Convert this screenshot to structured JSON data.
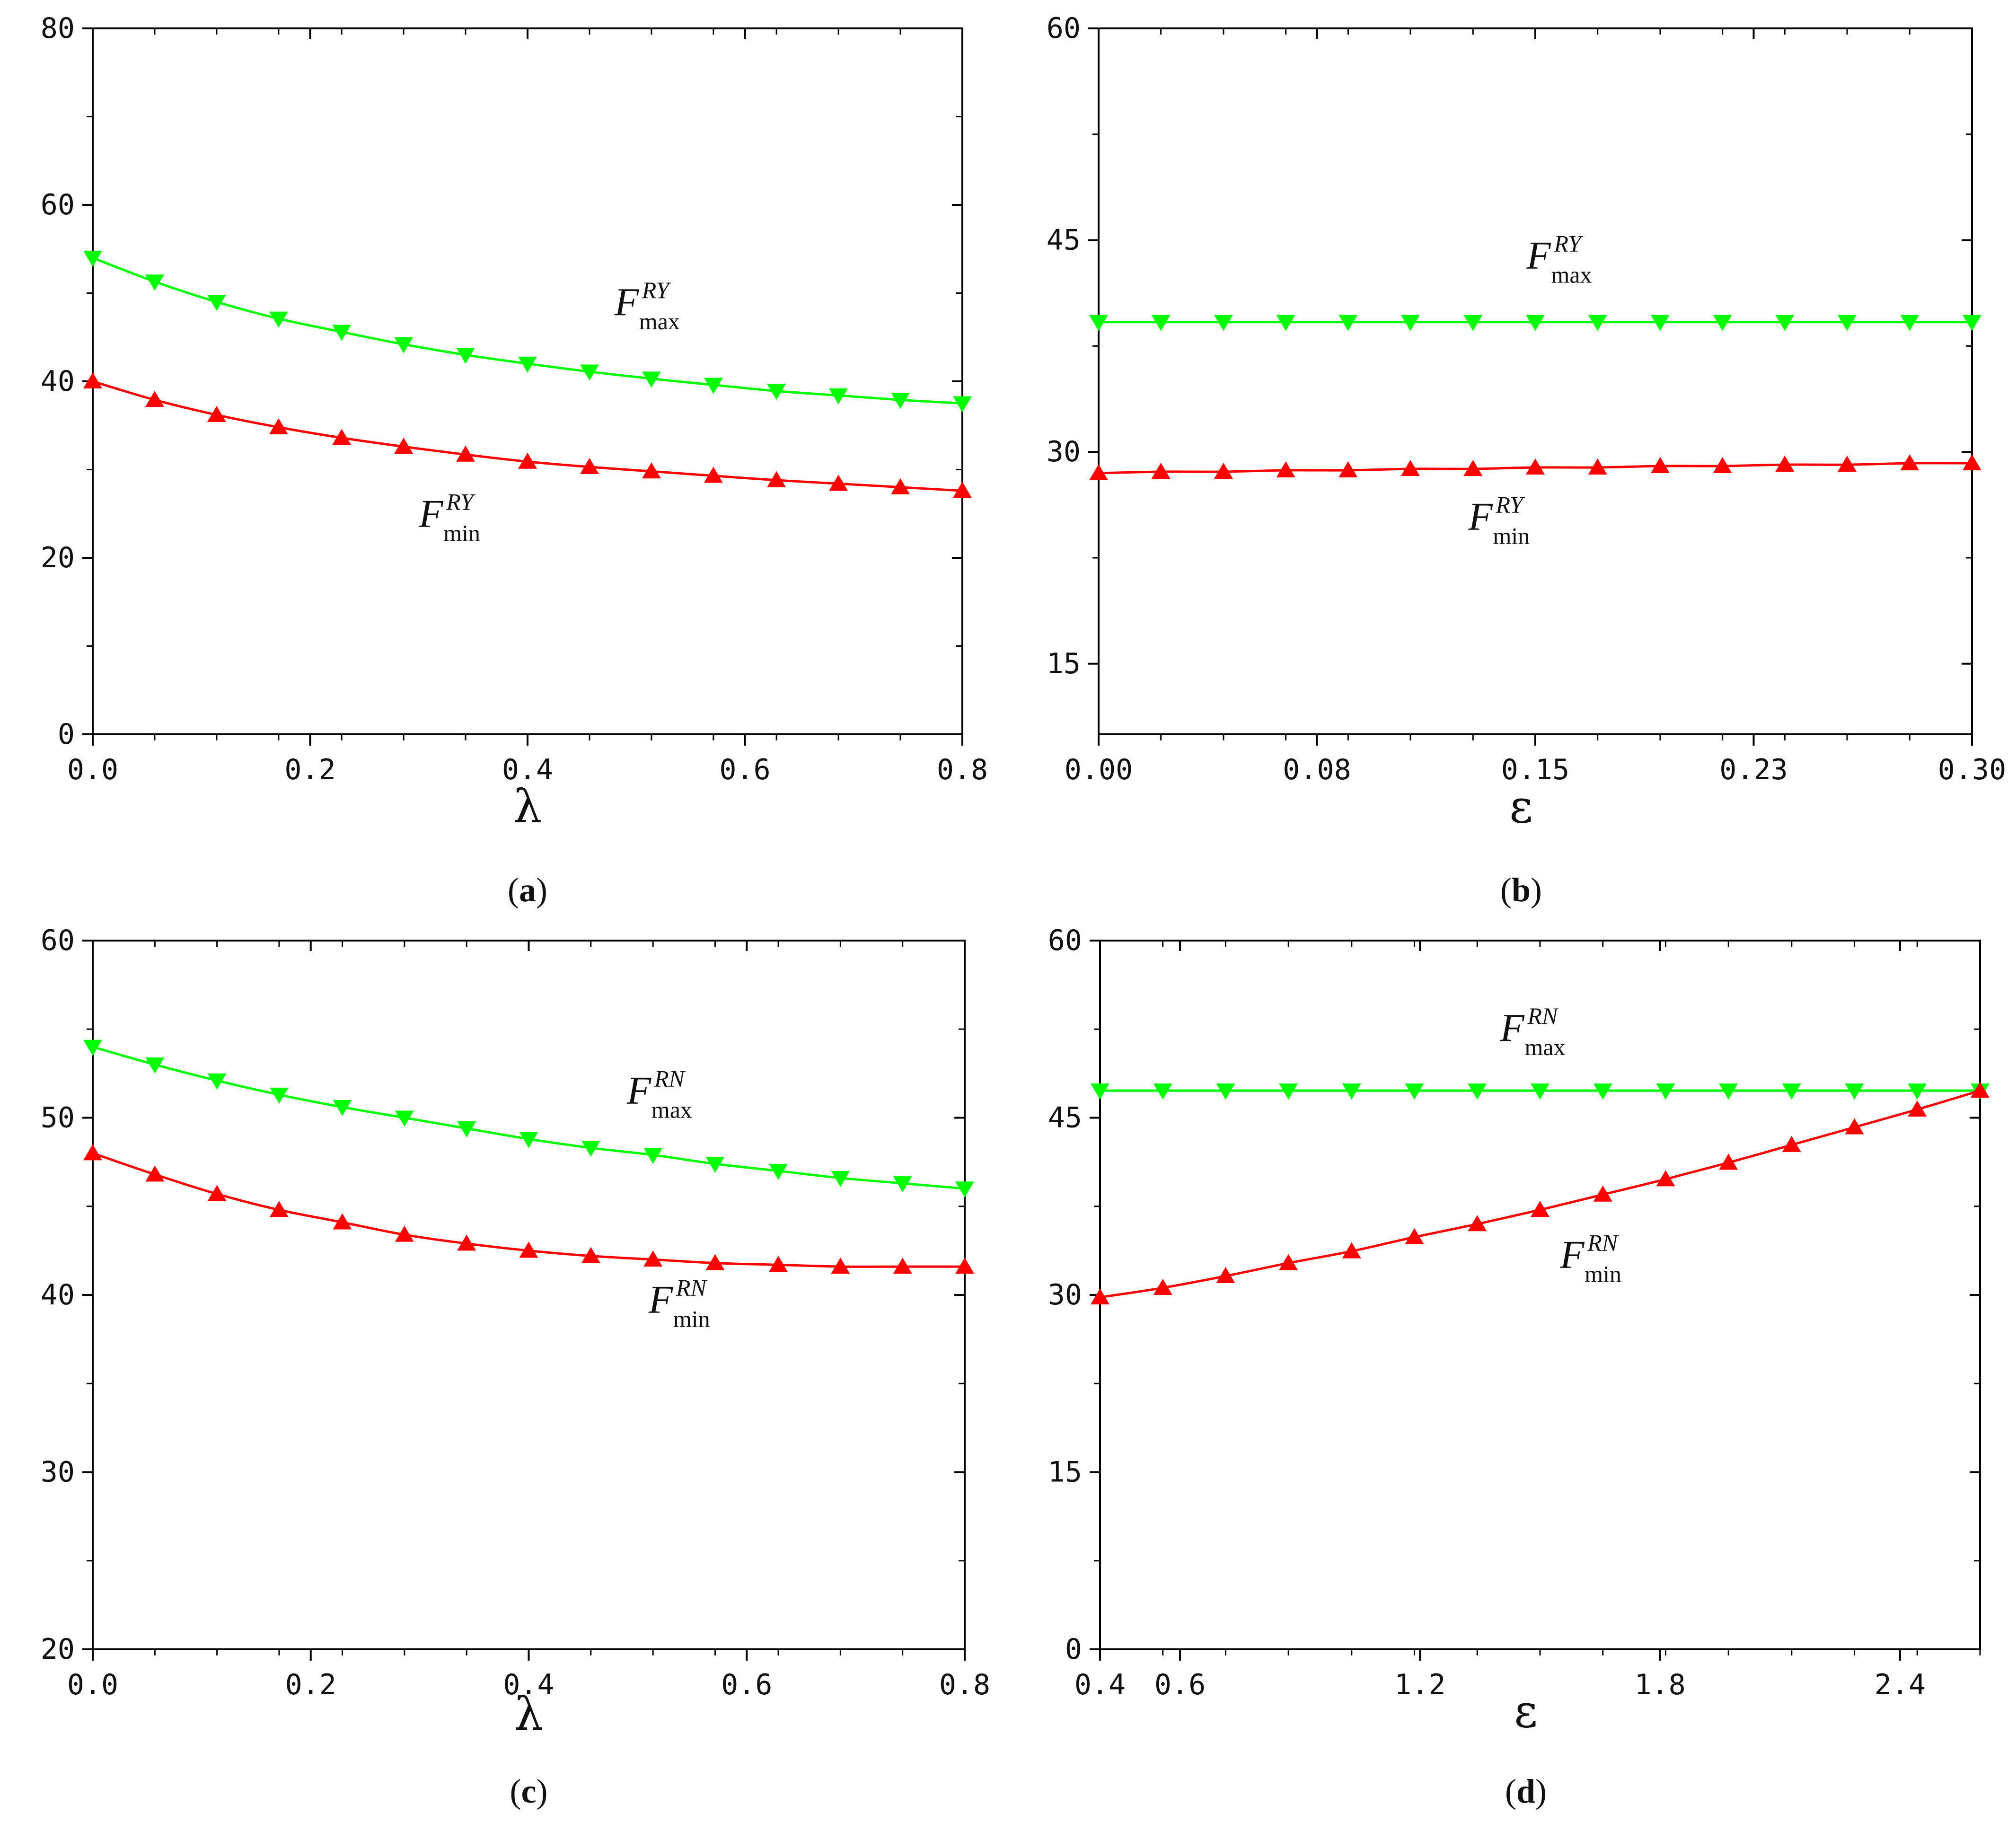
{
  "chart_data": [
    {
      "type": "line",
      "panel_label": "a",
      "xlabel": "λ",
      "ylabel": "",
      "xlim": [
        0,
        0.8
      ],
      "ylim": [
        0,
        80
      ],
      "xticks": [
        0.0,
        0.2,
        0.4,
        0.6,
        0.8
      ],
      "xtick_labels": [
        "0.0",
        "0.2",
        "0.4",
        "0.6",
        "0.8"
      ],
      "yticks": [
        0,
        20,
        40,
        60,
        80
      ],
      "ytick_labels": [
        "0",
        "20",
        "40",
        "60",
        "80"
      ],
      "grid": false,
      "series": [
        {
          "name": "F_max^RY",
          "label_main": "F",
          "label_sup": "RY",
          "label_sub": "max",
          "color": "#00ff00",
          "marker": "triangle-down",
          "x": [
            0.0,
            0.057,
            0.114,
            0.171,
            0.229,
            0.286,
            0.343,
            0.4,
            0.457,
            0.514,
            0.571,
            0.629,
            0.686,
            0.743,
            0.8
          ],
          "y": [
            54.0,
            51.3,
            49.0,
            47.1,
            45.6,
            44.2,
            43.0,
            42.0,
            41.1,
            40.3,
            39.6,
            38.9,
            38.4,
            37.9,
            37.5
          ]
        },
        {
          "name": "F_min^RY",
          "label_main": "F",
          "label_sup": "RY",
          "label_sub": "min",
          "color": "#ff0000",
          "marker": "triangle-up",
          "x": [
            0.0,
            0.057,
            0.114,
            0.171,
            0.229,
            0.286,
            0.343,
            0.4,
            0.457,
            0.514,
            0.571,
            0.629,
            0.686,
            0.743,
            0.8
          ],
          "y": [
            40.0,
            37.9,
            36.2,
            34.8,
            33.6,
            32.6,
            31.7,
            30.9,
            30.3,
            29.8,
            29.3,
            28.8,
            28.4,
            28.0,
            27.6
          ]
        }
      ],
      "annotations": [
        {
          "series": 0,
          "x": 0.48,
          "y": 47.5
        },
        {
          "series": 1,
          "x": 0.3,
          "y": 23.5
        }
      ]
    },
    {
      "type": "line",
      "panel_label": "b",
      "xlabel": "ε",
      "ylabel": "",
      "xlim": [
        0,
        0.3
      ],
      "ylim": [
        10,
        60
      ],
      "xticks": [
        0.0,
        0.075,
        0.15,
        0.225,
        0.3
      ],
      "xtick_labels": [
        "0.00",
        "0.08",
        "0.15",
        "0.23",
        "0.30"
      ],
      "yticks": [
        15,
        30,
        45,
        60
      ],
      "ytick_labels": [
        "15",
        "30",
        "45",
        "60"
      ],
      "grid": false,
      "series": [
        {
          "name": "F_max^RY",
          "label_main": "F",
          "label_sup": "RY",
          "label_sub": "max",
          "color": "#00ff00",
          "marker": "triangle-down",
          "x": [
            0.0,
            0.0214,
            0.0429,
            0.0643,
            0.0857,
            0.1071,
            0.1286,
            0.15,
            0.1714,
            0.1929,
            0.2143,
            0.2357,
            0.2571,
            0.2786,
            0.3
          ],
          "y": [
            39.2,
            39.2,
            39.2,
            39.2,
            39.2,
            39.2,
            39.2,
            39.2,
            39.2,
            39.2,
            39.2,
            39.2,
            39.2,
            39.2,
            39.2
          ]
        },
        {
          "name": "F_min^RY",
          "label_main": "F",
          "label_sup": "RY",
          "label_sub": "min",
          "color": "#ff0000",
          "marker": "triangle-up",
          "x": [
            0.0,
            0.0214,
            0.0429,
            0.0643,
            0.0857,
            0.1071,
            0.1286,
            0.15,
            0.1714,
            0.1929,
            0.2143,
            0.2357,
            0.2571,
            0.2786,
            0.3
          ],
          "y": [
            28.5,
            28.6,
            28.6,
            28.7,
            28.7,
            28.8,
            28.8,
            28.9,
            28.9,
            29.0,
            29.0,
            29.1,
            29.1,
            29.2,
            29.2
          ]
        }
      ],
      "annotations": [
        {
          "series": 0,
          "x": 0.147,
          "y": 43.0
        },
        {
          "series": 1,
          "x": 0.127,
          "y": 24.5
        }
      ]
    },
    {
      "type": "line",
      "panel_label": "c",
      "xlabel": "λ",
      "ylabel": "",
      "xlim": [
        0,
        0.8
      ],
      "ylim": [
        20,
        60
      ],
      "xticks": [
        0.0,
        0.2,
        0.4,
        0.6,
        0.8
      ],
      "xtick_labels": [
        "0.0",
        "0.2",
        "0.4",
        "0.6",
        "0.8"
      ],
      "yticks": [
        20,
        30,
        40,
        50,
        60
      ],
      "ytick_labels": [
        "20",
        "30",
        "40",
        "50",
        "60"
      ],
      "grid": false,
      "series": [
        {
          "name": "F_max^RN",
          "label_main": "F",
          "label_sup": "RN",
          "label_sub": "max",
          "color": "#00ff00",
          "marker": "triangle-down",
          "x": [
            0.0,
            0.057,
            0.114,
            0.171,
            0.229,
            0.286,
            0.343,
            0.4,
            0.457,
            0.514,
            0.571,
            0.629,
            0.686,
            0.743,
            0.8
          ],
          "y": [
            54.0,
            53.0,
            52.1,
            51.3,
            50.6,
            50.0,
            49.4,
            48.8,
            48.3,
            47.9,
            47.4,
            47.0,
            46.6,
            46.3,
            46.0
          ]
        },
        {
          "name": "F_min^RN",
          "label_main": "F",
          "label_sup": "RN",
          "label_sub": "min",
          "color": "#ff0000",
          "marker": "triangle-up",
          "x": [
            0.0,
            0.057,
            0.114,
            0.171,
            0.229,
            0.286,
            0.343,
            0.4,
            0.457,
            0.514,
            0.571,
            0.629,
            0.686,
            0.743,
            0.8
          ],
          "y": [
            48.0,
            46.8,
            45.7,
            44.8,
            44.1,
            43.4,
            42.9,
            42.5,
            42.2,
            42.0,
            41.8,
            41.7,
            41.6,
            41.6,
            41.6
          ]
        }
      ],
      "annotations": [
        {
          "series": 0,
          "x": 0.49,
          "y": 50.8
        },
        {
          "series": 1,
          "x": 0.51,
          "y": 39.0
        }
      ]
    },
    {
      "type": "line",
      "panel_label": "d",
      "xlabel": "ε",
      "ylabel": "",
      "xlim": [
        0.4,
        2.6
      ],
      "ylim": [
        0,
        60
      ],
      "xticks": [
        0.4,
        0.6,
        1.2,
        1.8,
        2.4
      ],
      "xtick_labels": [
        "0.4",
        "0.6",
        "1.2",
        "1.8",
        "2.4"
      ],
      "yticks": [
        0,
        15,
        30,
        45,
        60
      ],
      "ytick_labels": [
        "0",
        "15",
        "30",
        "45",
        "60"
      ],
      "grid": false,
      "series": [
        {
          "name": "F_max^RN",
          "label_main": "F",
          "label_sup": "RN",
          "label_sub": "max",
          "color": "#00ff00",
          "marker": "triangle-down",
          "x": [
            0.4,
            0.557,
            0.714,
            0.871,
            1.029,
            1.186,
            1.343,
            1.5,
            1.657,
            1.814,
            1.971,
            2.129,
            2.286,
            2.443,
            2.6
          ],
          "y": [
            47.3,
            47.3,
            47.3,
            47.3,
            47.3,
            47.3,
            47.3,
            47.3,
            47.3,
            47.3,
            47.3,
            47.3,
            47.3,
            47.3,
            47.3
          ]
        },
        {
          "name": "F_min^RN",
          "label_main": "F",
          "label_sup": "RN",
          "label_sub": "min",
          "color": "#ff0000",
          "marker": "triangle-up",
          "x": [
            0.4,
            0.557,
            0.714,
            0.871,
            1.029,
            1.186,
            1.343,
            1.5,
            1.657,
            1.814,
            1.971,
            2.129,
            2.286,
            2.443,
            2.6
          ],
          "y": [
            29.8,
            30.6,
            31.6,
            32.7,
            33.7,
            34.9,
            36.0,
            37.2,
            38.5,
            39.8,
            41.2,
            42.7,
            44.2,
            45.7,
            47.3
          ]
        }
      ],
      "annotations": [
        {
          "series": 0,
          "x": 1.4,
          "y": 51.5
        },
        {
          "series": 1,
          "x": 1.55,
          "y": 32.3
        }
      ]
    }
  ]
}
